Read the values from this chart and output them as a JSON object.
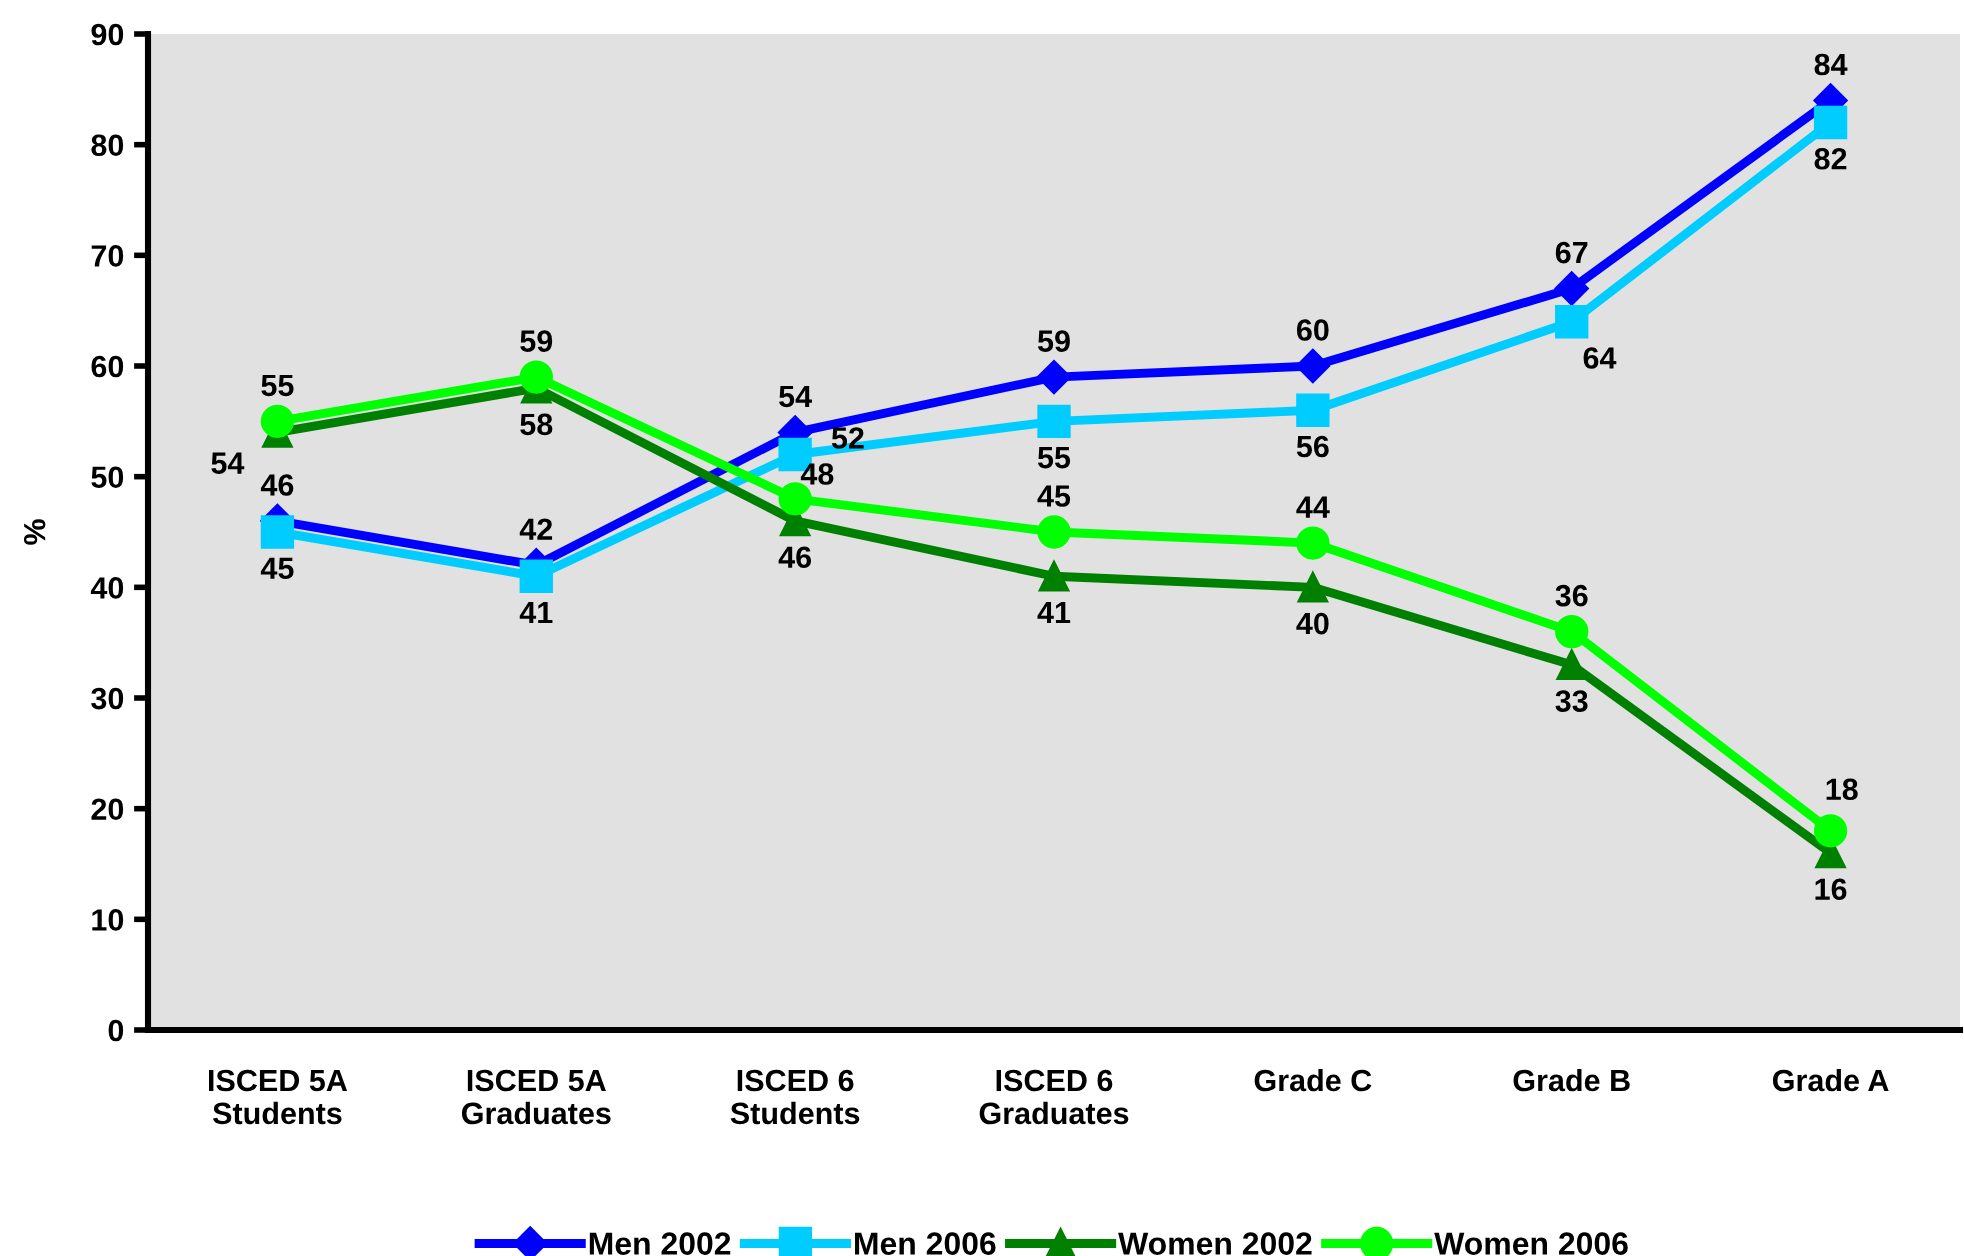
{
  "chart_data": {
    "type": "line",
    "ylabel": "%",
    "categories": [
      "ISCED 5A\nStudents",
      "ISCED 5A\nGraduates",
      "ISCED 6\nStudents",
      "ISCED 6\nGraduates",
      "Grade C",
      "Grade B",
      "Grade A"
    ],
    "series": [
      {
        "name": "Men 2002",
        "color": "#0000ff",
        "marker": "diamond",
        "values": [
          46,
          42,
          54,
          59,
          60,
          67,
          84
        ]
      },
      {
        "name": "Men 2006",
        "color": "#00ccff",
        "marker": "square",
        "values": [
          45,
          41,
          52,
          55,
          56,
          64,
          82
        ]
      },
      {
        "name": "Women 2002",
        "color": "#008000",
        "marker": "triangle",
        "values": [
          54,
          58,
          46,
          41,
          40,
          33,
          16
        ]
      },
      {
        "name": "Women 2006",
        "color": "#00ff00",
        "marker": "circle",
        "values": [
          55,
          59,
          48,
          45,
          44,
          36,
          18
        ]
      }
    ],
    "ylim": [
      0,
      90
    ],
    "yticks": [
      0,
      10,
      20,
      30,
      40,
      50,
      60,
      70,
      80,
      90
    ],
    "grid": false,
    "legend": "bottom",
    "data_labels": true,
    "line_style": "solid"
  }
}
